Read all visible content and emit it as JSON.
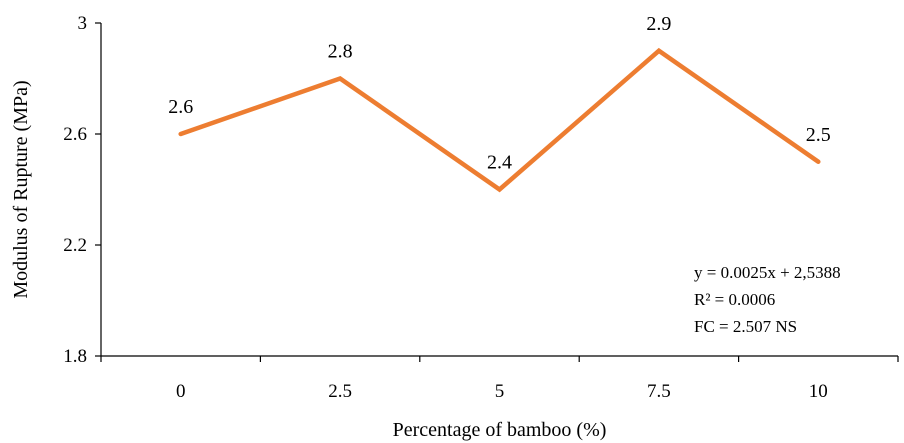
{
  "chart_data": {
    "type": "line",
    "categories": [
      "0",
      "2.5",
      "5",
      "7.5",
      "10"
    ],
    "series": [
      {
        "values": [
          2.6,
          2.8,
          2.4,
          2.9,
          2.5
        ],
        "color": "#ED7D31"
      }
    ],
    "data_labels": [
      "2.6",
      "2.8",
      "2.4",
      "2.9",
      "2.5"
    ],
    "xlabel": "Percentage of bamboo (%)",
    "ylabel": "Modulus of Rupture (MPa)",
    "ylim": [
      1.8,
      3.0
    ],
    "yticks": [
      1.8,
      2.2,
      2.6,
      3.0
    ],
    "ytick_labels": [
      "1.8",
      "2.2",
      "2.6",
      "3"
    ],
    "grid": false,
    "annotations": [
      "y = 0.0025x + 2,5388",
      "R² = 0.0006",
      "FC = 2.507 NS"
    ]
  }
}
